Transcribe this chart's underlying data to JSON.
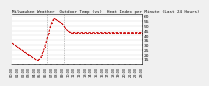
{
  "title": "Milwaukee Weather  Outdoor Temp (vs)  Heat Index per Minute (Last 24 Hours)",
  "line_color": "#cc0000",
  "background_color": "#f0f0f0",
  "plot_bg_color": "#ffffff",
  "grid_color": "#999999",
  "vline_color": "#888888",
  "vline_x": [
    0.27,
    0.4
  ],
  "y_values": [
    32,
    31,
    30,
    29,
    28,
    27,
    26,
    25,
    24,
    23,
    22,
    21,
    20,
    19,
    18,
    17,
    16,
    15,
    14,
    14,
    15,
    17,
    20,
    24,
    28,
    33,
    38,
    43,
    49,
    53,
    56,
    58,
    57,
    56,
    55,
    54,
    53,
    52,
    50,
    48,
    46,
    45,
    44,
    43,
    43,
    43,
    43,
    43,
    43,
    43,
    43,
    43,
    43,
    43,
    43,
    43,
    43,
    43,
    43,
    43,
    43,
    43,
    43,
    43,
    43,
    43,
    43,
    43,
    43,
    43,
    43,
    43,
    43,
    43,
    43,
    43,
    43,
    43,
    43,
    43,
    43,
    43,
    43,
    43,
    43,
    43,
    43,
    43,
    43,
    43,
    43,
    43,
    43,
    43,
    43,
    43
  ],
  "ylim": [
    10,
    62
  ],
  "ytick_labels": [
    "60",
    "55",
    "50",
    "45",
    "40",
    "35",
    "30",
    "25",
    "20",
    "15"
  ],
  "ytick_values": [
    60,
    55,
    50,
    45,
    40,
    35,
    30,
    25,
    20,
    15
  ],
  "title_fontsize": 3.0,
  "ytick_fontsize": 3.2,
  "xtick_fontsize": 2.5,
  "line_width": 0.7,
  "marker_size": 0.8
}
